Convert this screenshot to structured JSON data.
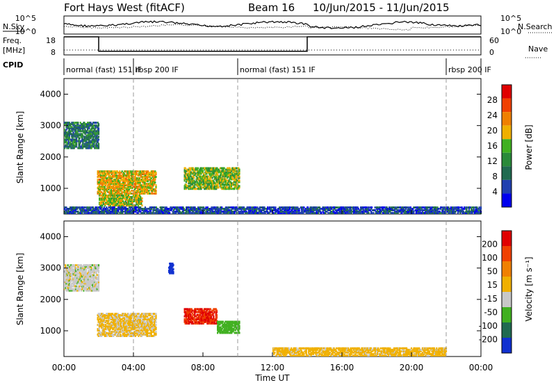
{
  "header": {
    "title": "Fort Hays West (fitACF)",
    "beam": "Beam 16",
    "dates": "10/Jun/2015 - 11/Jun/2015"
  },
  "top_panel": {
    "nsky_label": "N.Sky",
    "nsearch_label": "N.Search",
    "left_ticks": [
      "10^5",
      "10^0"
    ],
    "right_ticks": [
      "10^5",
      "10^0"
    ],
    "freq_label_top": "Freq.",
    "freq_label_bottom": "[MHz]",
    "freq_ticks": [
      "18",
      "8"
    ],
    "nave_label": "Nave",
    "nave_ticks": [
      "60",
      "0"
    ],
    "cpid_label": "CPID",
    "cpid_segments": [
      {
        "label": "normal (fast) 151 IF",
        "start_h": 0,
        "end_h": 4
      },
      {
        "label": "rbsp 200 IF",
        "start_h": 4,
        "end_h": 10
      },
      {
        "label": "normal (fast) 151 IF",
        "start_h": 10,
        "end_h": 22
      },
      {
        "label": "rbsp 200 IF",
        "start_h": 22,
        "end_h": 24
      }
    ]
  },
  "power_panel": {
    "ylabel": "Slant Range [km]",
    "yticks": [
      "4000",
      "3000",
      "2000",
      "1000"
    ],
    "colorbar_label": "Power [dB]",
    "colorbar_ticks": [
      "28",
      "24",
      "20",
      "16",
      "12",
      "8",
      "4"
    ],
    "colorbar_colors": [
      "#0000ee",
      "#2040b0",
      "#206a50",
      "#2a8a3a",
      "#40b020",
      "#f0b000",
      "#f08000",
      "#f04000",
      "#e00000"
    ]
  },
  "velocity_panel": {
    "ylabel": "Slant Range [km]",
    "yticks": [
      "4000",
      "3000",
      "2000",
      "1000"
    ],
    "colorbar_label": "Velocity [m s⁻¹]",
    "colorbar_ticks": [
      "200",
      "100",
      "50",
      "15",
      "-15",
      "-50",
      "-100",
      "-200"
    ],
    "colorbar_colors": [
      "#1030d0",
      "#206a50",
      "#40b020",
      "#c8c8c8",
      "#f0b000",
      "#f08000",
      "#f04000",
      "#e00000"
    ]
  },
  "x_axis": {
    "ticks": [
      "00:00",
      "04:00",
      "08:00",
      "12:00",
      "16:00",
      "20:00",
      "00:00"
    ],
    "label": "Time UT"
  },
  "chart_data": {
    "type": "heatmap",
    "x_range_hours": [
      0,
      24
    ],
    "y_range_km": [
      180,
      4500
    ],
    "cpid_change_hours": [
      4,
      10,
      22
    ],
    "freq_mhz": [
      {
        "t_start": 0,
        "t_end": 2,
        "value": 18
      },
      {
        "t_start": 2,
        "t_end": 14,
        "value": 10
      },
      {
        "t_start": 14,
        "t_end": 24,
        "value": 18
      }
    ],
    "power_regions": [
      {
        "t_start": 0.0,
        "t_end": 2.0,
        "r_start": 2250,
        "r_end": 3100,
        "power_db": 10
      },
      {
        "t_start": 1.9,
        "t_end": 5.3,
        "r_start": 800,
        "r_end": 1550,
        "power_db": 20
      },
      {
        "t_start": 2.0,
        "t_end": 4.5,
        "r_start": 420,
        "r_end": 780,
        "power_db": 18
      },
      {
        "t_start": 6.9,
        "t_end": 10.1,
        "r_start": 950,
        "r_end": 1650,
        "power_db": 16
      },
      {
        "t_start": 0.0,
        "t_end": 24.0,
        "r_start": 180,
        "r_end": 400,
        "power_db": 6
      }
    ],
    "velocity_regions": [
      {
        "t_start": 0.0,
        "t_end": 2.0,
        "r_start": 2250,
        "r_end": 3100,
        "velocity": 0
      },
      {
        "t_start": 1.9,
        "t_end": 5.3,
        "r_start": 800,
        "r_end": 1550,
        "velocity": -20
      },
      {
        "t_start": 6.9,
        "t_end": 8.8,
        "r_start": 1200,
        "r_end": 1700,
        "velocity": -150
      },
      {
        "t_start": 8.8,
        "t_end": 10.1,
        "r_start": 900,
        "r_end": 1300,
        "velocity": 40
      },
      {
        "t_start": 6.0,
        "t_end": 6.3,
        "r_start": 2800,
        "r_end": 3150,
        "velocity": 200
      },
      {
        "t_start": 12.0,
        "t_end": 22.0,
        "r_start": 180,
        "r_end": 450,
        "velocity": -30
      }
    ]
  }
}
